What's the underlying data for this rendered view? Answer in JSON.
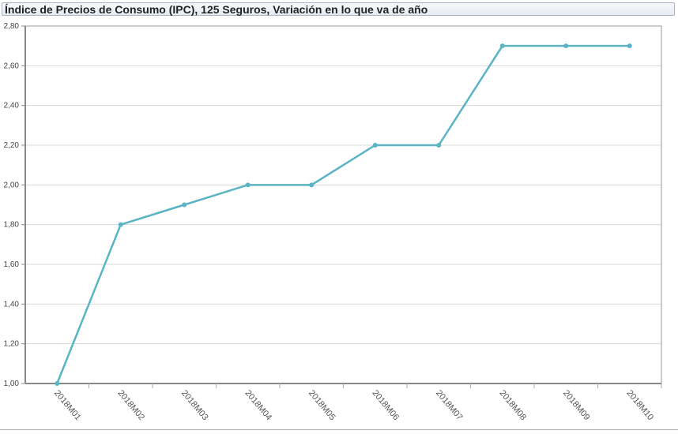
{
  "chart_data": {
    "type": "line",
    "title": "Índice de Precios de Consumo (IPC), 125 Seguros, Variación en lo que va de año",
    "categories": [
      "2018M01",
      "2018M02",
      "2018M03",
      "2018M04",
      "2018M05",
      "2018M06",
      "2018M07",
      "2018M08",
      "2018M09",
      "2018M10"
    ],
    "values": [
      1.0,
      1.8,
      1.9,
      2.0,
      2.0,
      2.2,
      2.2,
      2.7,
      2.7,
      2.7
    ],
    "ylim": [
      1.0,
      2.8
    ],
    "yticks": [
      "1,00",
      "1,20",
      "1,40",
      "1,60",
      "1,80",
      "2,00",
      "2,20",
      "2,40",
      "2,60",
      "2,80"
    ],
    "grid": true,
    "line_color": "#5ab4c4",
    "xlabel": "",
    "ylabel": ""
  }
}
